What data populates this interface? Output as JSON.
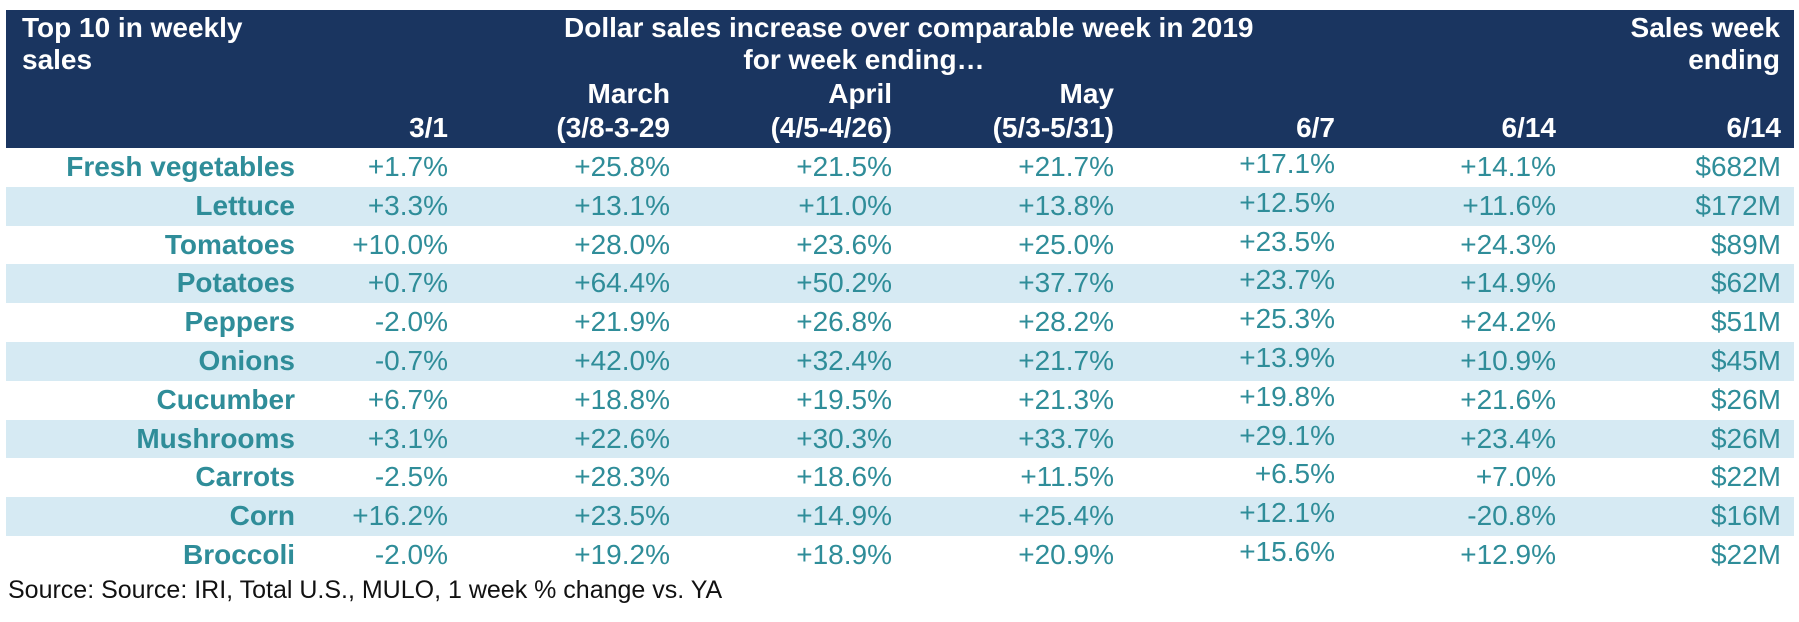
{
  "chart_data": {
    "type": "table",
    "header": {
      "left": [
        "Top 10 in weekly",
        "sales"
      ],
      "center": [
        "Dollar sales increase over comparable week in 2019",
        "for week ending…"
      ],
      "right": [
        "Sales week",
        "ending"
      ]
    },
    "columns": [
      {
        "top": "",
        "bottom": "3/1"
      },
      {
        "top": "March",
        "bottom": "(3/8-3-29"
      },
      {
        "top": "April",
        "bottom": "(4/5-4/26)"
      },
      {
        "top": "May",
        "bottom": "(5/3-5/31)"
      },
      {
        "top": "",
        "bottom": "6/7"
      },
      {
        "top": "",
        "bottom": "6/14"
      },
      {
        "top": "",
        "bottom": "6/14"
      }
    ],
    "rows": [
      {
        "label": "Fresh vegetables",
        "values": [
          "+1.7%",
          "+25.8%",
          "+21.5%",
          "+21.7%",
          "+17.1%",
          "+14.1%",
          "$682M"
        ]
      },
      {
        "label": "Lettuce",
        "values": [
          "+3.3%",
          "+13.1%",
          "+11.0%",
          "+13.8%",
          "+12.5%",
          "+11.6%",
          "$172M"
        ]
      },
      {
        "label": "Tomatoes",
        "values": [
          "+10.0%",
          "+28.0%",
          "+23.6%",
          "+25.0%",
          "+23.5%",
          "+24.3%",
          "$89M"
        ]
      },
      {
        "label": "Potatoes",
        "values": [
          "+0.7%",
          "+64.4%",
          "+50.2%",
          "+37.7%",
          "+23.7%",
          "+14.9%",
          "$62M"
        ]
      },
      {
        "label": "Peppers",
        "values": [
          "-2.0%",
          "+21.9%",
          "+26.8%",
          "+28.2%",
          "+25.3%",
          "+24.2%",
          "$51M"
        ]
      },
      {
        "label": "Onions",
        "values": [
          "-0.7%",
          "+42.0%",
          "+32.4%",
          "+21.7%",
          "+13.9%",
          "+10.9%",
          "$45M"
        ]
      },
      {
        "label": "Cucumber",
        "values": [
          "+6.7%",
          "+18.8%",
          "+19.5%",
          "+21.3%",
          "+19.8%",
          "+21.6%",
          "$26M"
        ]
      },
      {
        "label": "Mushrooms",
        "values": [
          "+3.1%",
          "+22.6%",
          "+30.3%",
          "+33.7%",
          "+29.1%",
          "+23.4%",
          "$26M"
        ]
      },
      {
        "label": "Carrots",
        "values": [
          "-2.5%",
          "+28.3%",
          "+18.6%",
          "+11.5%",
          "+6.5%",
          "+7.0%",
          "$22M"
        ]
      },
      {
        "label": "Corn",
        "values": [
          "+16.2%",
          "+23.5%",
          "+14.9%",
          "+25.4%",
          "+12.1%",
          "-20.8%",
          "$16M"
        ]
      },
      {
        "label": "Broccoli",
        "values": [
          "-2.0%",
          "+19.2%",
          "+18.9%",
          "+20.9%",
          "+15.6%",
          "+12.9%",
          "$22M"
        ]
      }
    ],
    "source": "Source: Source: IRI, Total U.S., MULO, 1 week % change vs. YA"
  },
  "colors": {
    "header_bg": "#1a3560",
    "header_text": "#ffffff",
    "row_text": "#2f8d99",
    "alt_row_bg": "#d6eaf3"
  }
}
